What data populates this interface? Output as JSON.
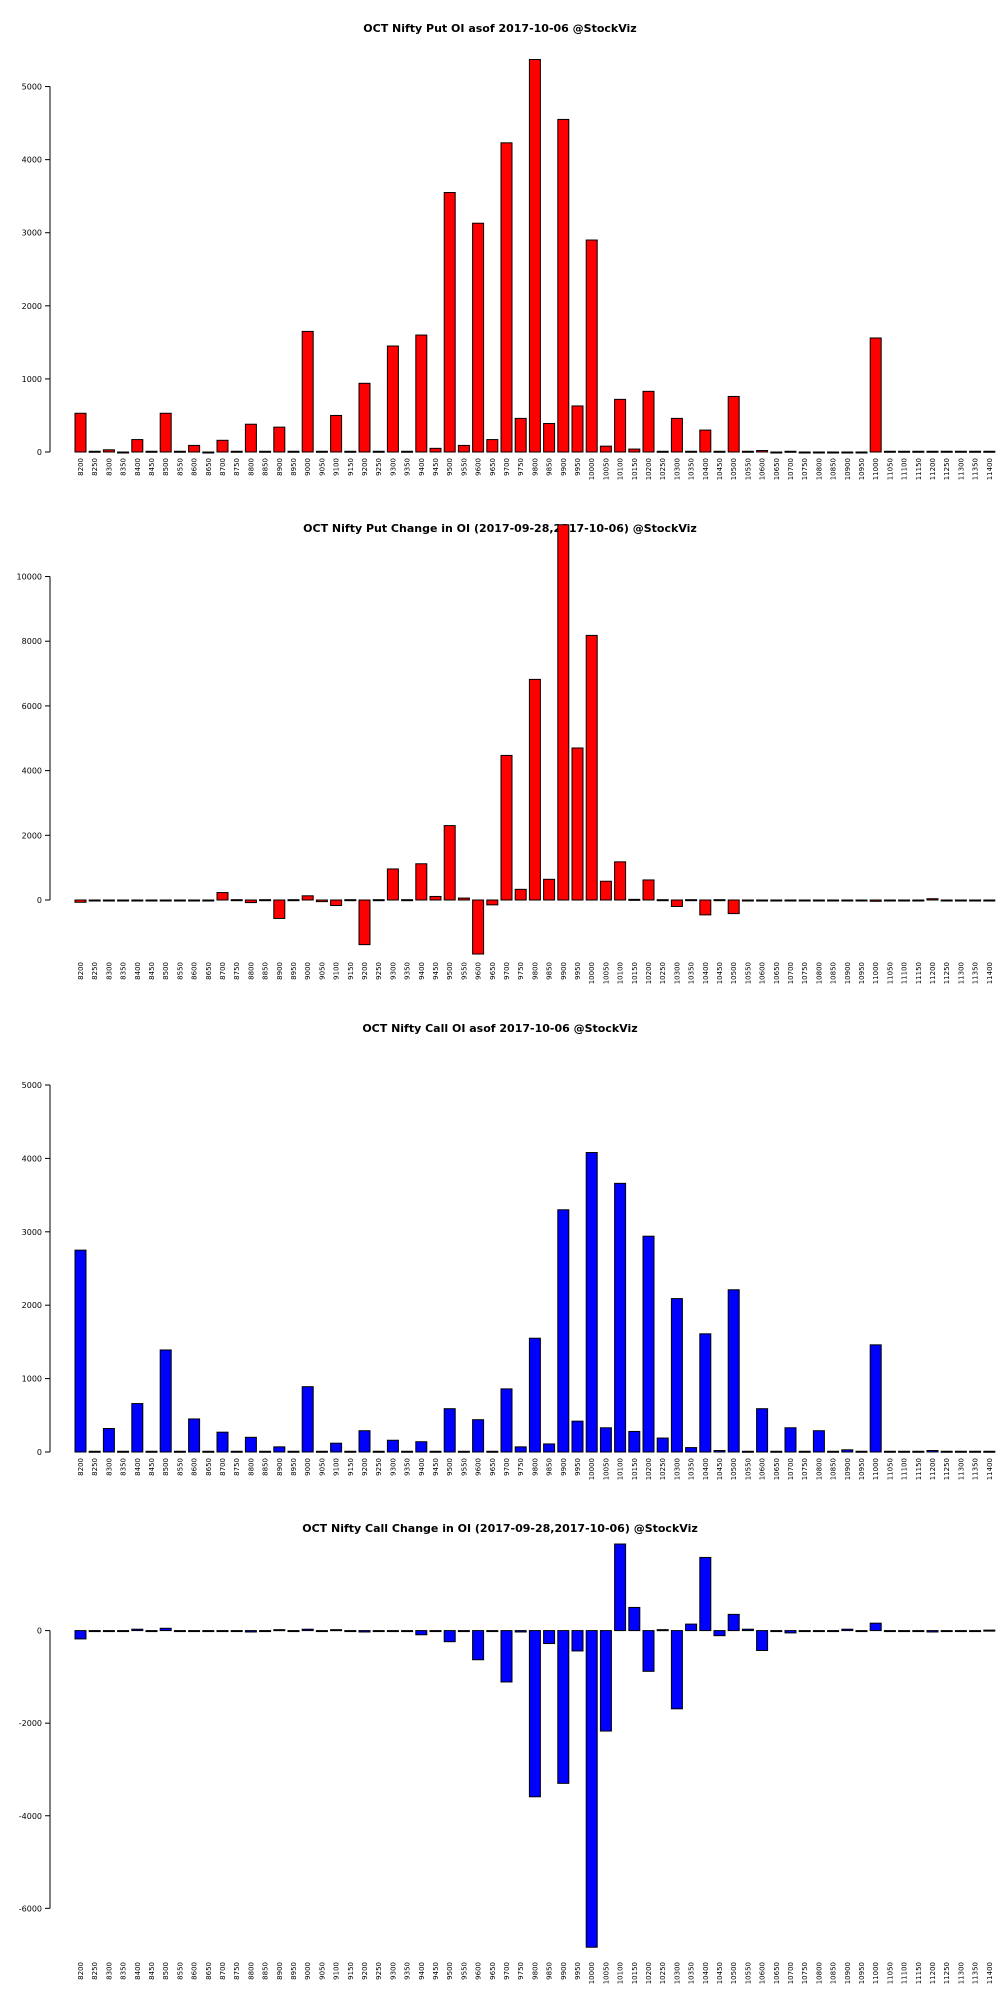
{
  "chart_data": [
    {
      "type": "bar",
      "title": "OCT Nifty Put OI asof 2017-10-06 @StockViz",
      "color": "#ff0000",
      "ylim": [
        0,
        5500
      ],
      "yticks": [
        0,
        1000,
        2000,
        3000,
        4000,
        5000
      ],
      "categories": [
        "8200",
        "8250",
        "8300",
        "8350",
        "8400",
        "8450",
        "8500",
        "8550",
        "8600",
        "8650",
        "8700",
        "8750",
        "8800",
        "8850",
        "8900",
        "8950",
        "9000",
        "9050",
        "9100",
        "9150",
        "9200",
        "9250",
        "9300",
        "9350",
        "9400",
        "9450",
        "9500",
        "9550",
        "9600",
        "9650",
        "9700",
        "9750",
        "9800",
        "9850",
        "9900",
        "9950",
        "10000",
        "10050",
        "10100",
        "10150",
        "10200",
        "10250",
        "10300",
        "10350",
        "10400",
        "10450",
        "10500",
        "10550",
        "10600",
        "10650",
        "10700",
        "10750",
        "10800",
        "10850",
        "10900",
        "10950",
        "11000",
        "11050",
        "11100",
        "11150",
        "11200",
        "11250",
        "11300",
        "11350",
        "11400"
      ],
      "values": [
        530,
        10,
        30,
        0,
        170,
        10,
        530,
        10,
        90,
        0,
        160,
        10,
        380,
        10,
        340,
        10,
        1650,
        10,
        500,
        10,
        940,
        10,
        1450,
        10,
        1600,
        50,
        3550,
        90,
        3130,
        170,
        4230,
        460,
        5370,
        390,
        4550,
        630,
        2900,
        80,
        720,
        40,
        830,
        10,
        460,
        10,
        300,
        10,
        760,
        10,
        20,
        0,
        10,
        0,
        0,
        0,
        0,
        0,
        1560,
        10,
        10,
        10,
        10,
        10,
        10,
        10,
        10
      ]
    },
    {
      "type": "bar",
      "title": "OCT Nifty Put Change in OI (2017-09-28,2017-10-06) @StockViz",
      "color": "#ff0000",
      "ylim": [
        -1700,
        11500
      ],
      "yticks": [
        0,
        2000,
        4000,
        6000,
        8000,
        10000
      ],
      "categories": [
        "8200",
        "8250",
        "8300",
        "8350",
        "8400",
        "8450",
        "8500",
        "8550",
        "8600",
        "8650",
        "8700",
        "8750",
        "8800",
        "8850",
        "8900",
        "8950",
        "9000",
        "9050",
        "9100",
        "9150",
        "9200",
        "9250",
        "9300",
        "9350",
        "9400",
        "9450",
        "9500",
        "9550",
        "9600",
        "9650",
        "9700",
        "9750",
        "9800",
        "9850",
        "9900",
        "9950",
        "10000",
        "10050",
        "10100",
        "10150",
        "10200",
        "10250",
        "10300",
        "10350",
        "10400",
        "10450",
        "10500",
        "10550",
        "10600",
        "10650",
        "10700",
        "10750",
        "10800",
        "10850",
        "10900",
        "10950",
        "11000",
        "11050",
        "11100",
        "11150",
        "11200",
        "11250",
        "11300",
        "11350",
        "11400"
      ],
      "values": [
        -70,
        -10,
        -10,
        -10,
        -10,
        -10,
        -10,
        -10,
        -10,
        -10,
        230,
        10,
        -80,
        10,
        -570,
        10,
        130,
        -50,
        -170,
        10,
        -1380,
        10,
        960,
        10,
        1120,
        110,
        2300,
        60,
        -1670,
        -150,
        4470,
        330,
        6820,
        640,
        11600,
        4700,
        8180,
        580,
        1180,
        20,
        620,
        10,
        -200,
        10,
        -460,
        10,
        -420,
        -10,
        -10,
        -10,
        -10,
        -10,
        -10,
        -10,
        -10,
        -10,
        -40,
        -10,
        -10,
        -10,
        40,
        -10,
        -10,
        -10,
        -10
      ]
    },
    {
      "type": "bar",
      "title": "OCT Nifty Call OI asof 2017-10-06 @StockViz",
      "color": "#0000ff",
      "ylim": [
        0,
        5000
      ],
      "yticks": [
        0,
        1000,
        2000,
        3000,
        4000,
        5000
      ],
      "categories": [
        "8200",
        "8250",
        "8300",
        "8350",
        "8400",
        "8450",
        "8500",
        "8550",
        "8600",
        "8650",
        "8700",
        "8750",
        "8800",
        "8850",
        "8900",
        "8950",
        "9000",
        "9050",
        "9100",
        "9150",
        "9200",
        "9250",
        "9300",
        "9350",
        "9400",
        "9450",
        "9500",
        "9550",
        "9600",
        "9650",
        "9700",
        "9750",
        "9800",
        "9850",
        "9900",
        "9950",
        "10000",
        "10050",
        "10100",
        "10150",
        "10200",
        "10250",
        "10300",
        "10350",
        "10400",
        "10450",
        "10500",
        "10550",
        "10600",
        "10650",
        "10700",
        "10750",
        "10800",
        "10850",
        "10900",
        "10950",
        "11000",
        "11050",
        "11100",
        "11150",
        "11200",
        "11250",
        "11300",
        "11350",
        "11400"
      ],
      "values": [
        2750,
        10,
        320,
        10,
        660,
        10,
        1390,
        10,
        450,
        10,
        270,
        10,
        200,
        10,
        70,
        10,
        890,
        10,
        120,
        10,
        290,
        10,
        160,
        10,
        140,
        10,
        590,
        10,
        440,
        10,
        860,
        70,
        1550,
        110,
        3300,
        420,
        4080,
        330,
        3660,
        280,
        2940,
        190,
        2090,
        60,
        1610,
        20,
        2210,
        10,
        590,
        10,
        330,
        10,
        290,
        10,
        30,
        10,
        1460,
        10,
        10,
        10,
        20,
        10,
        10,
        10,
        10
      ]
    },
    {
      "type": "bar",
      "title": "OCT Nifty Call Change in OI (2017-09-28,2017-10-06) @StockViz",
      "color": "#0000ff",
      "ylim": [
        -6900,
        2000
      ],
      "yticks": [
        -6000,
        -4000,
        -2000,
        0
      ],
      "categories": [
        "8200",
        "8250",
        "8300",
        "8350",
        "8400",
        "8450",
        "8500",
        "8550",
        "8600",
        "8650",
        "8700",
        "8750",
        "8800",
        "8850",
        "8900",
        "8950",
        "9000",
        "9050",
        "9100",
        "9150",
        "9200",
        "9250",
        "9300",
        "9350",
        "9400",
        "9450",
        "9500",
        "9550",
        "9600",
        "9650",
        "9700",
        "9750",
        "9800",
        "9850",
        "9900",
        "9950",
        "10000",
        "10050",
        "10100",
        "10150",
        "10200",
        "10250",
        "10300",
        "10350",
        "10400",
        "10450",
        "10500",
        "10550",
        "10600",
        "10650",
        "10700",
        "10750",
        "10800",
        "10850",
        "10900",
        "10950",
        "11000",
        "11050",
        "11100",
        "11150",
        "11200",
        "11250",
        "11300",
        "11350",
        "11400"
      ],
      "values": [
        -180,
        -10,
        -10,
        -10,
        30,
        -10,
        50,
        -10,
        -10,
        -10,
        -10,
        -10,
        -30,
        -10,
        20,
        -10,
        30,
        -10,
        20,
        -10,
        -30,
        -10,
        -10,
        -10,
        -90,
        -10,
        -240,
        -10,
        -630,
        -10,
        -1110,
        -30,
        -3590,
        -280,
        -3300,
        -440,
        -6840,
        -2170,
        1870,
        500,
        -880,
        20,
        -1690,
        140,
        1580,
        -110,
        350,
        30,
        -430,
        -10,
        -50,
        -10,
        -10,
        -10,
        30,
        -10,
        160,
        -10,
        -10,
        -10,
        -30,
        -10,
        -10,
        -10,
        10
      ]
    }
  ]
}
